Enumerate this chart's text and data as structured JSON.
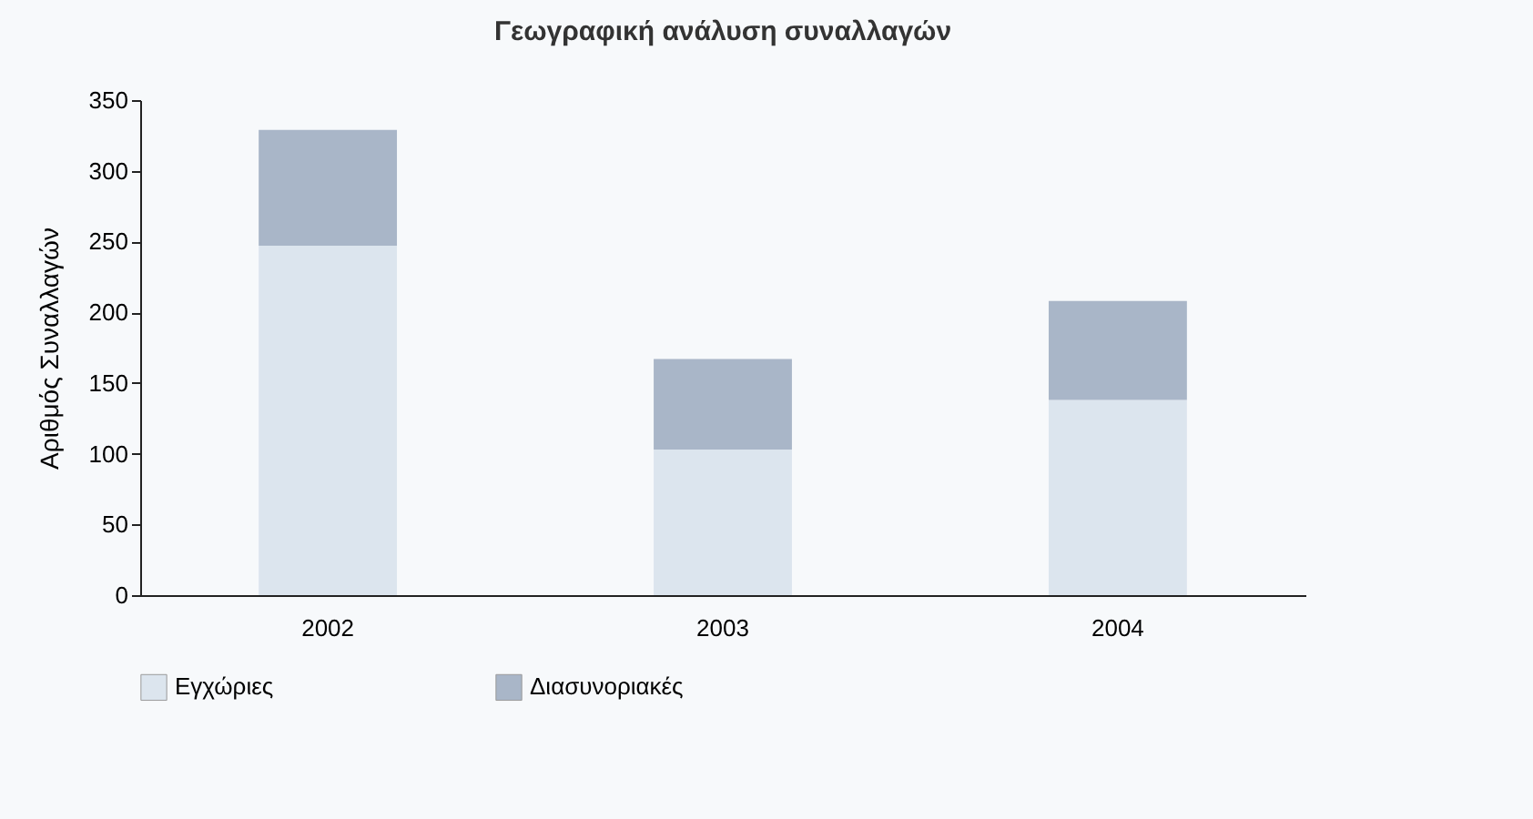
{
  "chart_data": {
    "type": "bar",
    "title": "Γεωγραφική ανάλυση συναλλαγών",
    "ylabel": "Αριθμός Συναλλαγών",
    "categories": [
      "2002",
      "2003",
      "2004"
    ],
    "stacked": true,
    "series": [
      {
        "name": "Εγχώριες",
        "color": "#dce5ee",
        "values": [
          247,
          103,
          138
        ]
      },
      {
        "name": "Διασυνοριακές",
        "color": "#a9b6c8",
        "values": [
          82,
          64,
          70
        ]
      }
    ],
    "ylim": [
      0,
      350
    ],
    "yticks": [
      0,
      50,
      100,
      150,
      200,
      250,
      300,
      350
    ],
    "grid": false,
    "legend": "bottom"
  }
}
